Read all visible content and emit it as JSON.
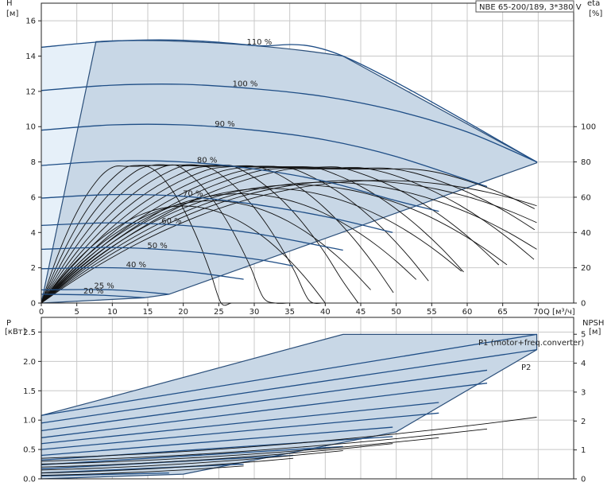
{
  "chart_data": [
    {
      "type": "line",
      "title": "NBE 65-200/189, 3*380 V",
      "xlabel": "Q [м³/ч]",
      "ylabel": "H",
      "yunit": "[м]",
      "ylabel_right": "eta",
      "yunit_right": "[%]",
      "xlim": [
        0,
        75
      ],
      "ylim": [
        0,
        17
      ],
      "xticks": [
        0,
        5,
        10,
        15,
        20,
        25,
        30,
        35,
        40,
        45,
        50,
        55,
        60,
        65,
        70
      ],
      "yticks": [
        0,
        2,
        4,
        6,
        8,
        10,
        12,
        14,
        16
      ],
      "yticks_right": [
        0,
        20,
        40,
        60,
        80,
        100
      ],
      "grid": true,
      "series": [
        {
          "name": "110 %",
          "x": [
            0,
            10,
            20,
            30,
            42.5,
            69.8
          ],
          "y": [
            14.5,
            14.85,
            14.9,
            14.6,
            14.0,
            8.0
          ]
        },
        {
          "name": "100 %",
          "x": [
            0,
            10,
            20,
            30,
            40,
            50,
            60,
            69.8
          ],
          "y": [
            12.05,
            12.35,
            12.4,
            12.15,
            11.7,
            10.9,
            9.7,
            8.0
          ]
        },
        {
          "name": "90 %",
          "x": [
            0,
            10,
            20,
            30,
            40,
            50,
            62.8
          ],
          "y": [
            9.8,
            10.1,
            10.1,
            9.8,
            9.25,
            8.3,
            6.6
          ]
        },
        {
          "name": "80 %",
          "x": [
            0,
            10,
            20,
            30,
            40,
            50,
            56
          ],
          "y": [
            7.8,
            8.05,
            8.0,
            7.6,
            6.9,
            5.8,
            5.2
          ]
        },
        {
          "name": "70 %",
          "x": [
            0,
            10,
            20,
            30,
            40,
            49.5
          ],
          "y": [
            5.95,
            6.15,
            6.05,
            5.6,
            4.9,
            4.0
          ]
        },
        {
          "name": "60 %",
          "x": [
            0,
            10,
            20,
            30,
            42.5
          ],
          "y": [
            4.4,
            4.55,
            4.4,
            3.95,
            3.0
          ]
        },
        {
          "name": "50 %",
          "x": [
            0,
            10,
            20,
            30,
            35.5
          ],
          "y": [
            3.05,
            3.15,
            2.95,
            2.5,
            2.1
          ]
        },
        {
          "name": "40 %",
          "x": [
            0,
            10,
            20,
            28.5
          ],
          "y": [
            1.95,
            2.0,
            1.8,
            1.35
          ]
        },
        {
          "name": "25 %",
          "x": [
            0,
            10,
            18
          ],
          "y": [
            0.75,
            0.75,
            0.5
          ]
        },
        {
          "name": "20 %",
          "x": [
            0,
            8,
            14.5
          ],
          "y": [
            0.5,
            0.45,
            0.3
          ]
        }
      ]
    },
    {
      "type": "line",
      "xlabel": "Q [м³/ч]",
      "ylabel": "P",
      "yunit": "[кВт]",
      "ylabel_right": "NPSH",
      "yunit_right": "[м]",
      "xlim": [
        0,
        75
      ],
      "ylim": [
        0,
        2.75
      ],
      "yticks": [
        0,
        0.5,
        1.0,
        1.5,
        2.0,
        2.5
      ],
      "yticks_right": [
        0,
        1,
        2,
        3,
        4,
        5
      ],
      "grid": true,
      "annotations": [
        "P1 (motor+freq.converter)",
        "P2"
      ],
      "series": [
        {
          "name": "P1 (motor+freq.converter)",
          "x": [
            0,
            69.8
          ],
          "y": [
            1.08,
            2.46
          ]
        },
        {
          "name": "P2",
          "x": [
            0,
            69.8
          ],
          "y": [
            0.95,
            2.2
          ]
        }
      ]
    }
  ]
}
